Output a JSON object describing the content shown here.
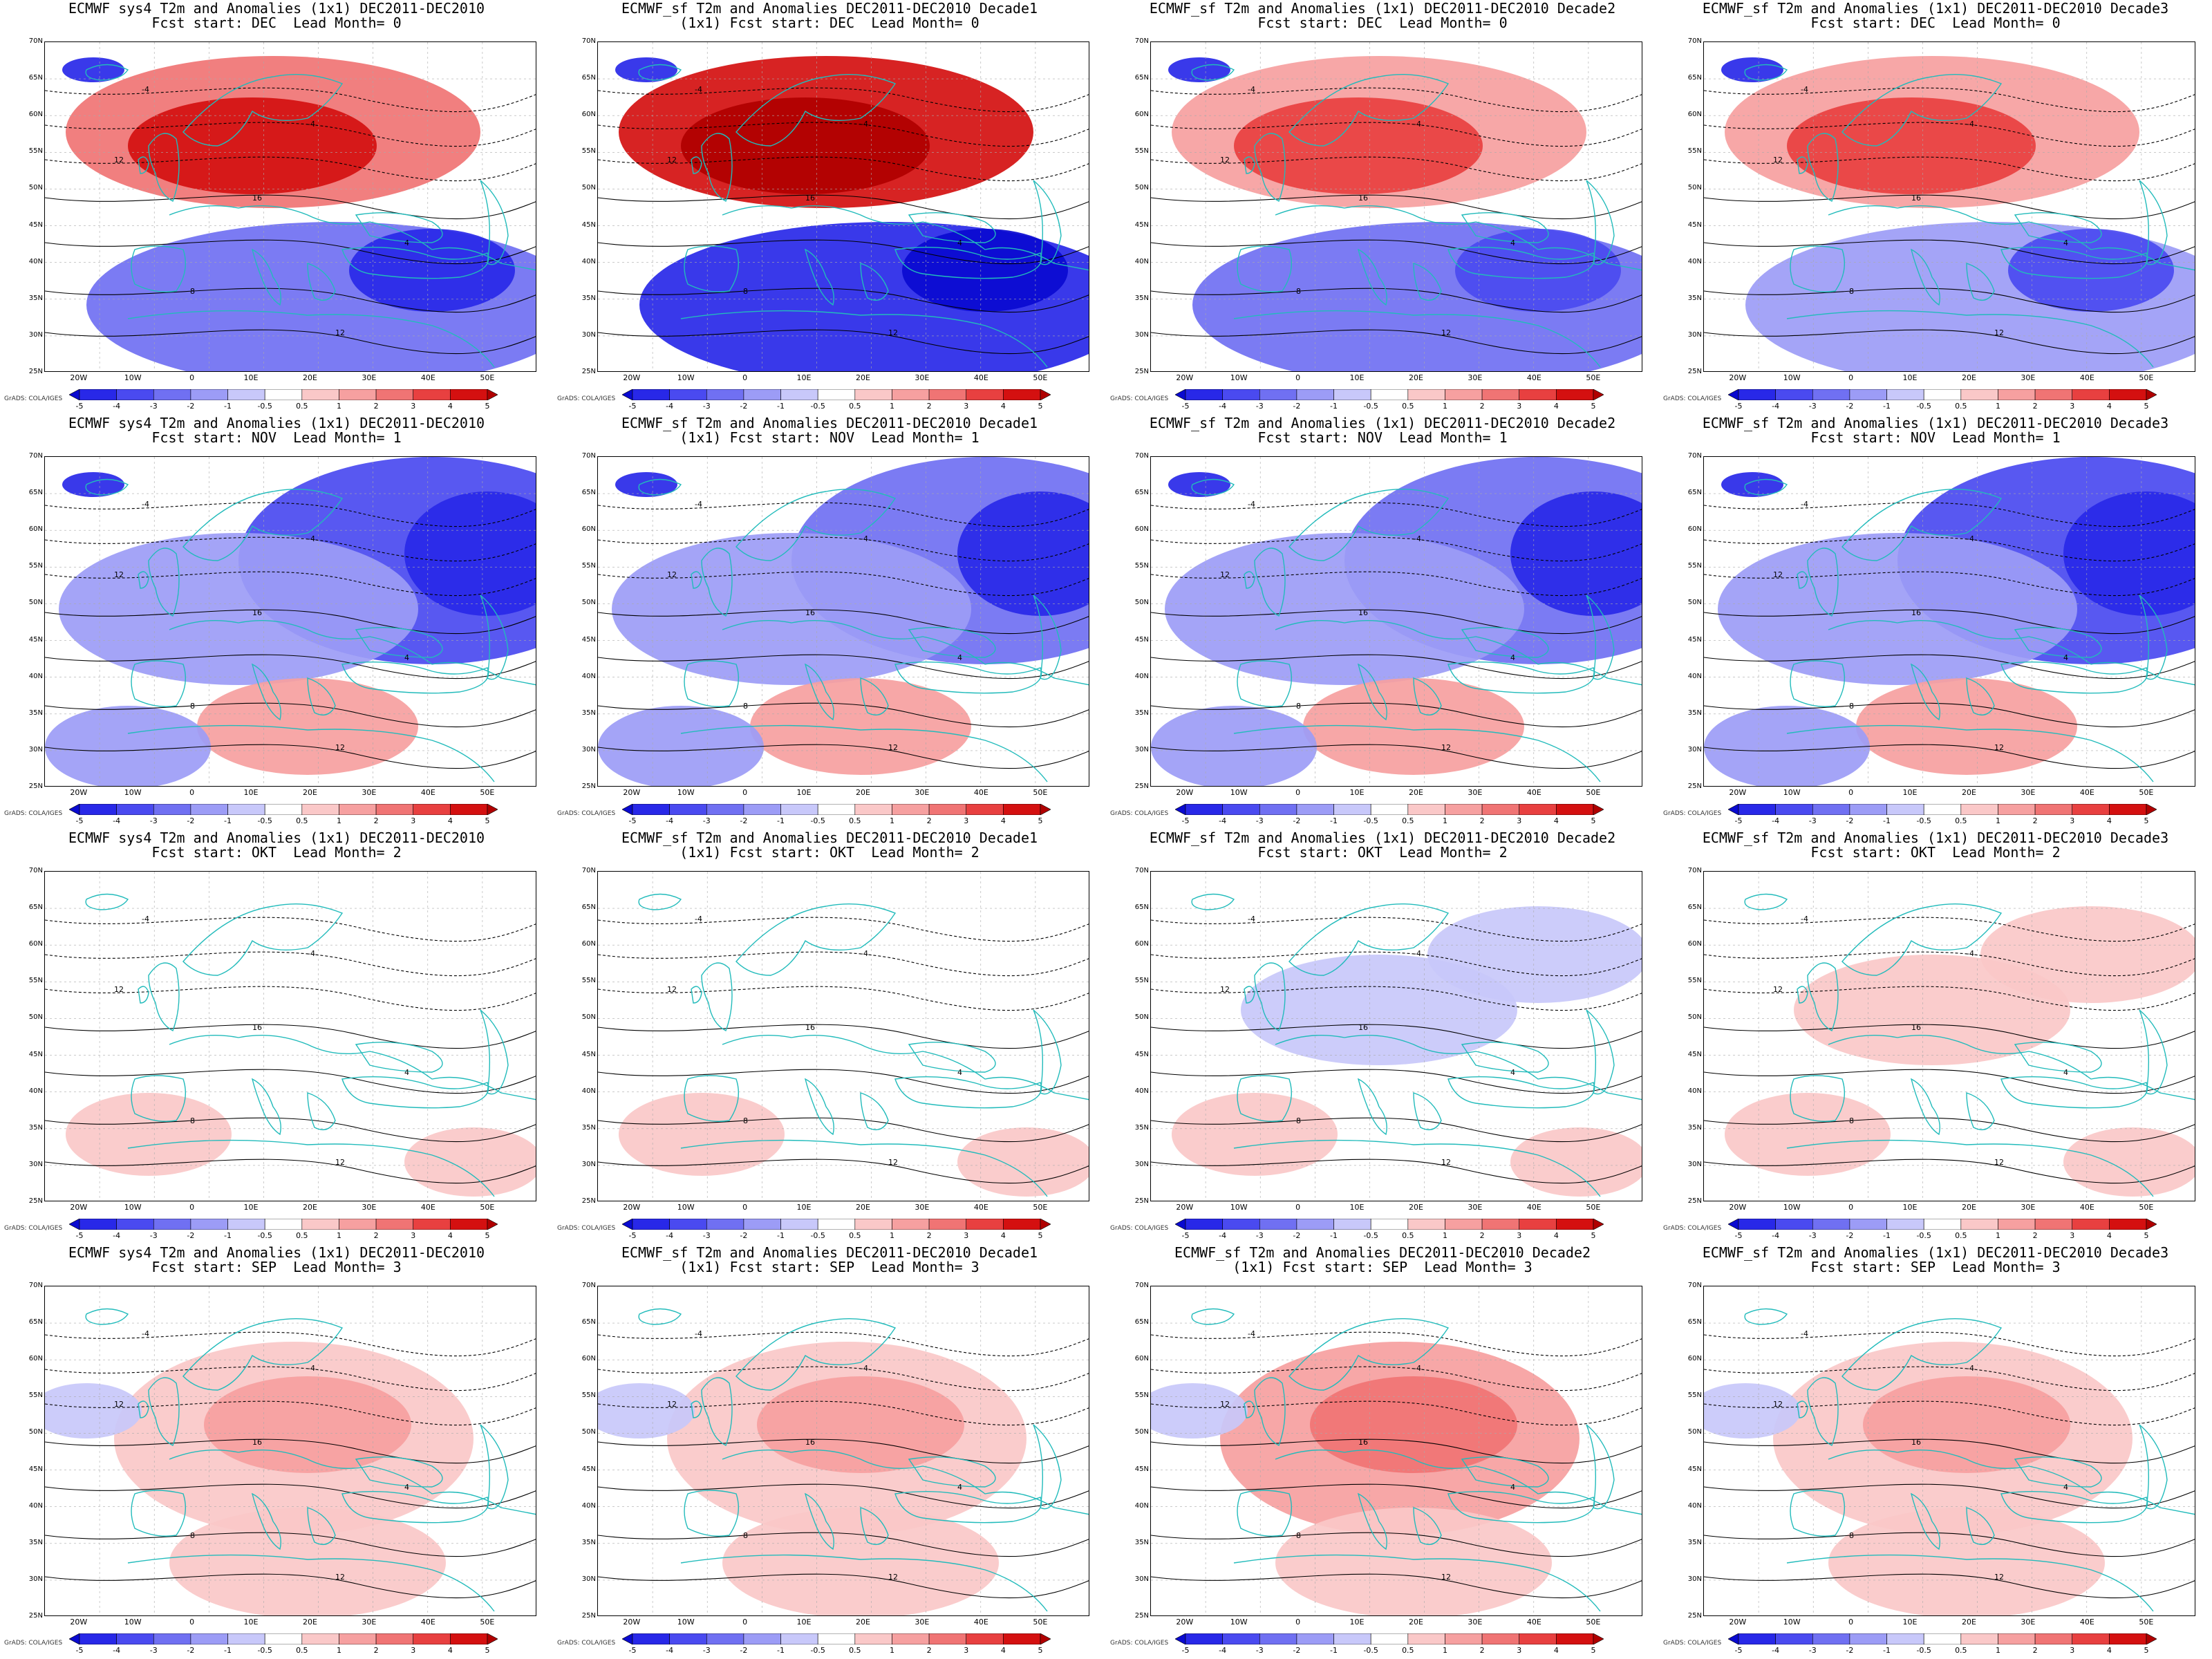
{
  "panels": [
    {
      "title1": "ECMWF sys4 T2m and Anomalies (1x1) DEC2011-DEC2010",
      "title2": "Fcst start: DEC  Lead Month= 0",
      "anom": 2.8
    },
    {
      "title1": "ECMWF_sf T2m and Anomalies DEC2011-DEC2010 Decade1",
      "title2": "(1x1) Fcst start: DEC  Lead Month= 0",
      "anom": 4.2
    },
    {
      "title1": "ECMWF_sf T2m and Anomalies (1x1) DEC2011-DEC2010 Decade2",
      "title2": "Fcst start: DEC  Lead Month= 0",
      "anom": 2.0
    },
    {
      "title1": "ECMWF_sf T2m and Anomalies (1x1) DEC2011-DEC2010 Decade3",
      "title2": "Fcst start: DEC  Lead Month= 0",
      "anom": 1.8
    },
    {
      "title1": "ECMWF sys4 T2m and Anomalies (1x1) DEC2011-DEC2010",
      "title2": "Fcst start: NOV  Lead Month= 1",
      "anom": -3.0
    },
    {
      "title1": "ECMWF_sf T2m and Anomalies DEC2011-DEC2010 Decade1",
      "title2": "(1x1) Fcst start: NOV  Lead Month= 1",
      "anom": -2.6
    },
    {
      "title1": "ECMWF_sf T2m and Anomalies (1x1) DEC2011-DEC2010 Decade2",
      "title2": "Fcst start: NOV  Lead Month= 1",
      "anom": -2.8
    },
    {
      "title1": "ECMWF_sf T2m and Anomalies (1x1) DEC2011-DEC2010 Decade3",
      "title2": "Fcst start: NOV  Lead Month= 1",
      "anom": -3.0
    },
    {
      "title1": "ECMWF sys4 T2m and Anomalies (1x1) DEC2011-DEC2010",
      "title2": "Fcst start: OKT  Lead Month= 2",
      "anom": 0.1
    },
    {
      "title1": "ECMWF_sf T2m and Anomalies DEC2011-DEC2010 Decade1",
      "title2": "(1x1) Fcst start: OKT  Lead Month= 2",
      "anom": 0.3
    },
    {
      "title1": "ECMWF_sf T2m and Anomalies (1x1) DEC2011-DEC2010 Decade2",
      "title2": "Fcst start: OKT  Lead Month= 2",
      "anom": -0.5
    },
    {
      "title1": "ECMWF_sf T2m and Anomalies (1x1) DEC2011-DEC2010 Decade3",
      "title2": "Fcst start: OKT  Lead Month= 2",
      "anom": 0.6
    },
    {
      "title1": "ECMWF sys4 T2m and Anomalies (1x1) DEC2011-DEC2010",
      "title2": "Fcst start: SEP  Lead Month= 3",
      "anom": 0.9
    },
    {
      "title1": "ECMWF_sf T2m and Anomalies DEC2011-DEC2010 Decade1",
      "title2": "(1x1) Fcst start: SEP  Lead Month= 3",
      "anom": 0.8
    },
    {
      "title1": "ECMWF_sf T2m and Anomalies DEC2011-DEC2010 Decade2",
      "title2": "(1x1) Fcst start: SEP  Lead Month= 3",
      "anom": 1.4
    },
    {
      "title1": "ECMWF_sf T2m and Anomalies (1x1) DEC2011-DEC2010 Decade3",
      "title2": "Fcst start: SEP  Lead Month= 3",
      "anom": 0.9
    }
  ],
  "lat_labels": [
    "70N",
    "65N",
    "60N",
    "55N",
    "50N",
    "45N",
    "40N",
    "35N",
    "30N",
    "25N"
  ],
  "lon_labels": [
    "20W",
    "10W",
    "0",
    "10E",
    "20E",
    "30E",
    "40E",
    "50E"
  ],
  "colorbar_ticks": [
    "-5",
    "-4",
    "-3",
    "-2",
    "-1",
    "-0.5",
    "0.5",
    "1",
    "2",
    "3",
    "4",
    "5"
  ],
  "colorbar_colors": [
    "#0a0ad0",
    "#2828e8",
    "#4a4af0",
    "#7070f2",
    "#9c9cf6",
    "#c8c8fa",
    "#ffffff",
    "#fac8c8",
    "#f6a0a0",
    "#f07474",
    "#e84040",
    "#d41010",
    "#b00000"
  ],
  "credit_text": "GrADS: COLA/IGES",
  "colors": {
    "coast": "#22bbbb",
    "contour": "#000000"
  },
  "contour_labels": [
    "-12",
    "-8",
    "-4",
    "0",
    "4",
    "8",
    "12",
    "16"
  ]
}
